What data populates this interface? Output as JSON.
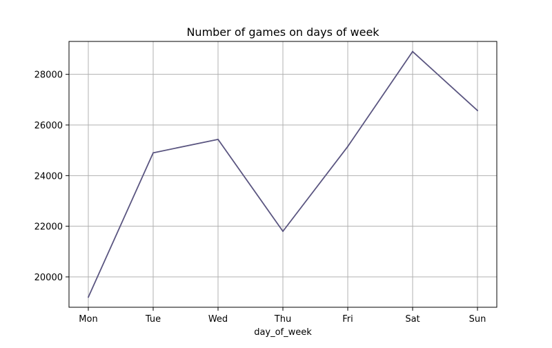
{
  "chart_data": {
    "type": "line",
    "title": "Number of games on days of week",
    "xlabel": "day_of_week",
    "ylabel": "",
    "categories": [
      "Mon",
      "Tue",
      "Wed",
      "Thu",
      "Fri",
      "Sat",
      "Sun"
    ],
    "series": [
      {
        "values": [
          19200,
          24900,
          25430,
          21800,
          25150,
          28900,
          26570
        ],
        "color": "#5a5580"
      }
    ],
    "ylim": [
      18800,
      29300
    ],
    "yticks": [
      20000,
      22000,
      24000,
      26000,
      28000
    ],
    "ytick_labels": [
      "20000",
      "22000",
      "24000",
      "26000",
      "28000"
    ],
    "grid": true,
    "legend": "none"
  }
}
